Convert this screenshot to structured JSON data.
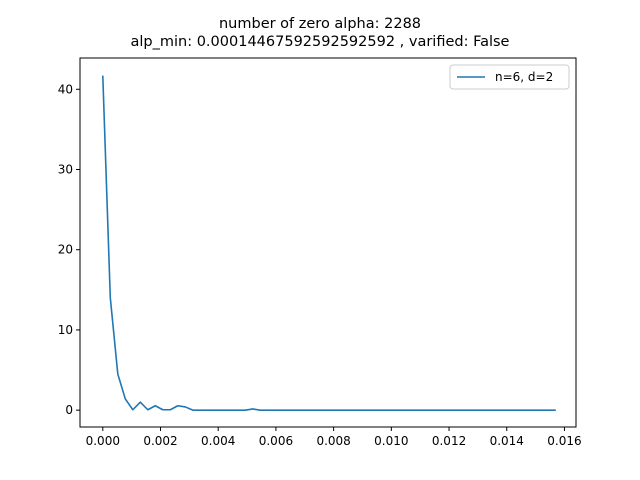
{
  "chart_data": {
    "type": "line",
    "title_lines": [
      "number of zero alpha: 2288",
      "alp_min: 0.00014467592592592592 , varified: False"
    ],
    "xlabel": "",
    "ylabel": "",
    "xlim": [
      -0.00079,
      0.0164
    ],
    "ylim": [
      -2.1,
      43.9
    ],
    "x_ticks": [
      0.0,
      0.002,
      0.004,
      0.006,
      0.008,
      0.01,
      0.012,
      0.014,
      0.016
    ],
    "x_tick_labels": [
      "0.000",
      "0.002",
      "0.004",
      "0.006",
      "0.008",
      "0.010",
      "0.012",
      "0.014",
      "0.016"
    ],
    "y_ticks": [
      0,
      10,
      20,
      30,
      40
    ],
    "y_tick_labels": [
      "0",
      "10",
      "20",
      "30",
      "40"
    ],
    "grid": false,
    "legend_position": "top-right",
    "series": [
      {
        "name": "n=6, d=2",
        "color": "#1f77b4",
        "x": [
          0.0,
          0.00026,
          0.00052,
          0.00078,
          0.00104,
          0.0013,
          0.00156,
          0.00182,
          0.00208,
          0.00234,
          0.0026,
          0.00286,
          0.00312,
          0.00338,
          0.00364,
          0.0039,
          0.00416,
          0.00442,
          0.00468,
          0.00494,
          0.0052,
          0.00546,
          0.00572,
          0.006,
          0.007,
          0.008,
          0.009,
          0.01,
          0.011,
          0.012,
          0.013,
          0.014,
          0.015,
          0.0157
        ],
        "y": [
          41.7,
          14.0,
          4.5,
          1.4,
          0.05,
          1.0,
          0.05,
          0.55,
          0.05,
          0.05,
          0.55,
          0.4,
          0.0,
          0.0,
          0.0,
          0.0,
          0.0,
          0.0,
          0.0,
          0.0,
          0.15,
          0.0,
          0.0,
          0.0,
          0.0,
          0.0,
          0.0,
          0.0,
          0.0,
          0.0,
          0.0,
          0.0,
          0.0,
          0.0
        ]
      }
    ]
  }
}
